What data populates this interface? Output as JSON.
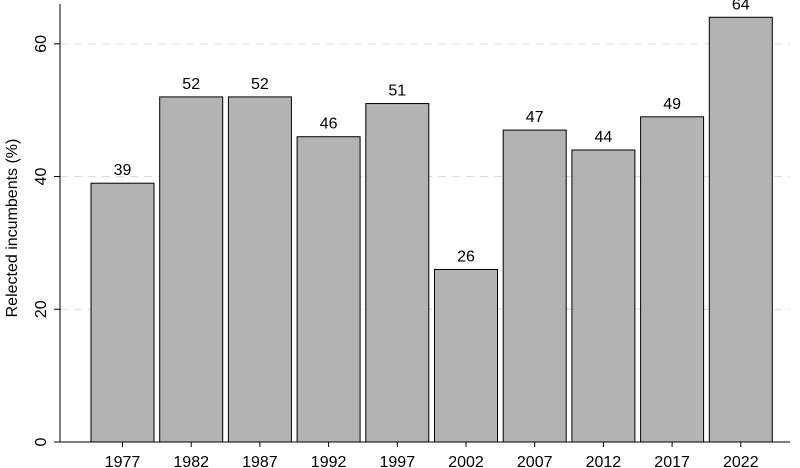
{
  "chart_data": {
    "type": "bar",
    "title": "",
    "xlabel": "",
    "ylabel": "Relected incumbents (%)",
    "categories": [
      "1977",
      "1982",
      "1987",
      "1992",
      "1997",
      "2002",
      "2007",
      "2012",
      "2017",
      "2022"
    ],
    "values": [
      39,
      52,
      52,
      46,
      51,
      26,
      47,
      44,
      49,
      64
    ],
    "ylim": [
      0,
      66
    ],
    "yticks": [
      0,
      20,
      40,
      60
    ],
    "grid": "horizontal dashed",
    "bar_color": "#b3b3b3",
    "bar_edge_color": "#000000",
    "grid_color": "#dcdcdc"
  }
}
